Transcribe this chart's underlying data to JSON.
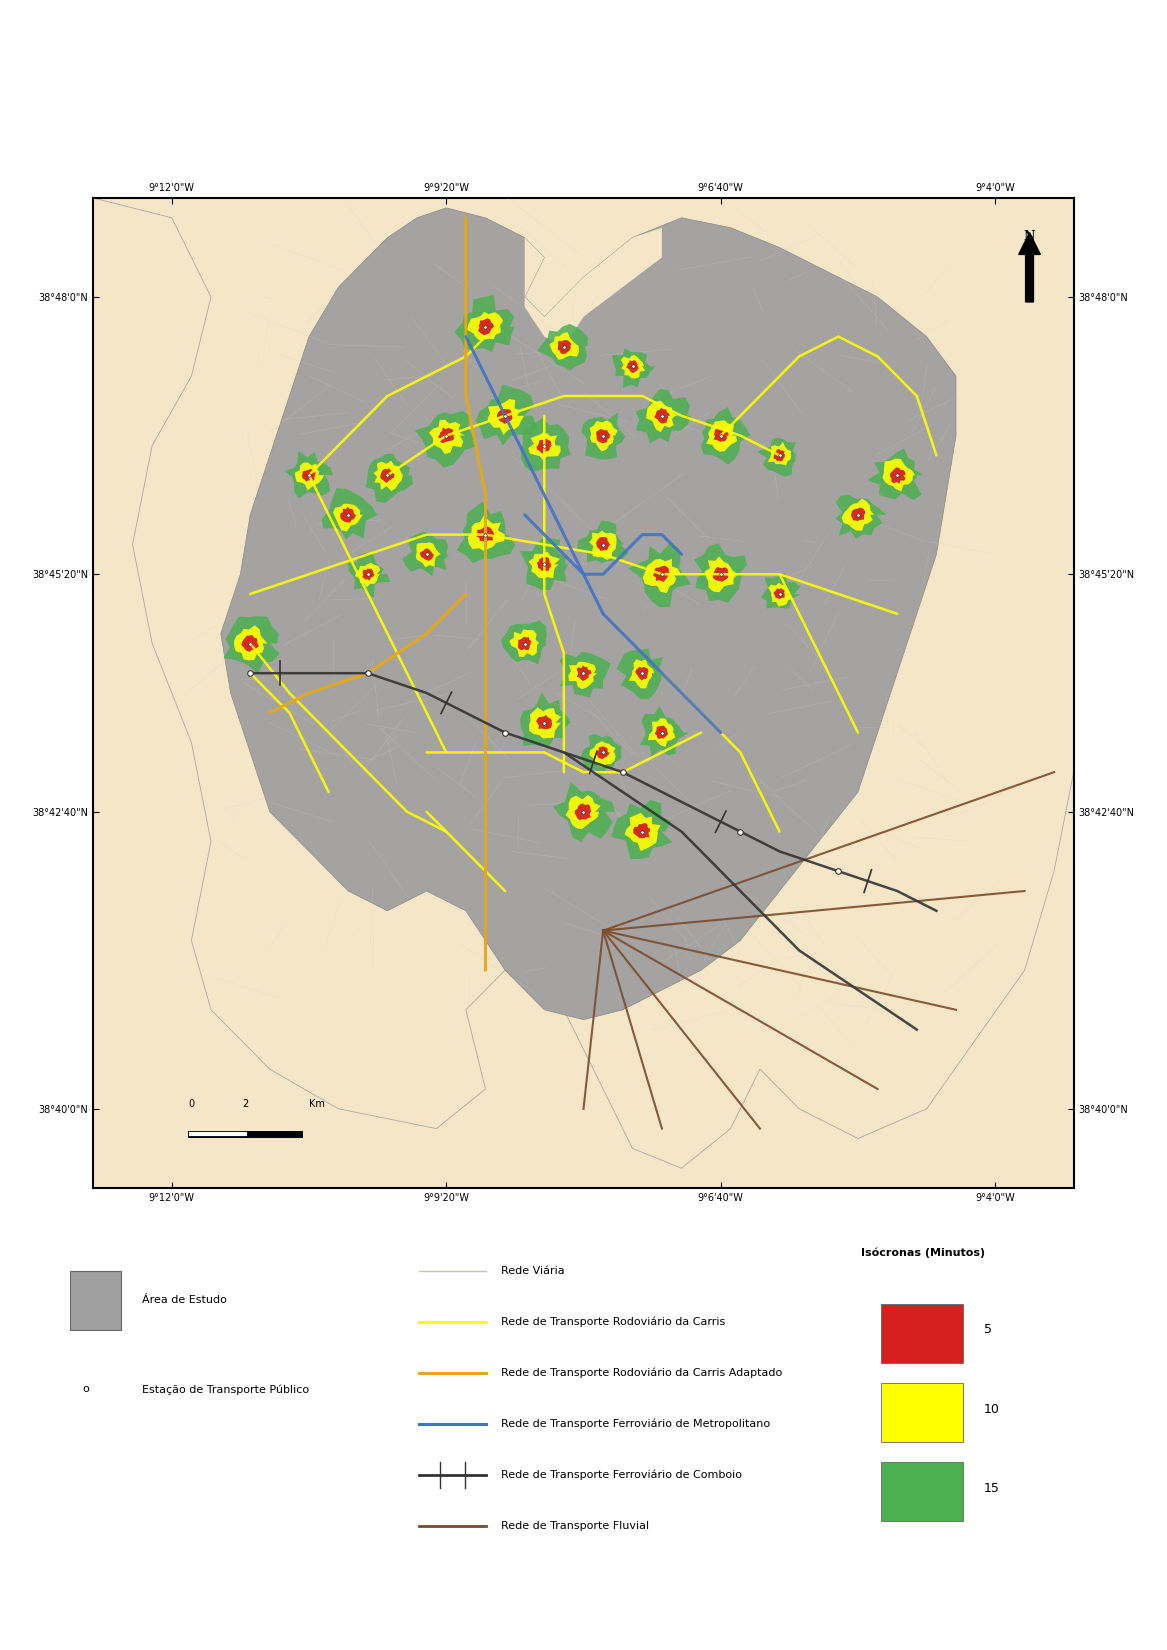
{
  "title": "",
  "map_bg_color": "#f5e6c8",
  "map_border_color": "#000000",
  "study_area_color": "#a0a0a0",
  "carris_color": "#ffff00",
  "carris_adapted_color": "#e6a817",
  "metro_color": "#4472c4",
  "comboio_color": "#333333",
  "fluvial_color": "#7B4B2A",
  "road_color": "#d8d0c0",
  "iso5_color": "#d62020",
  "iso10_color": "#ffff00",
  "iso15_color": "#4caf50",
  "axis_labels_top": [
    "9°12'0\"W",
    "9°9'20\"W",
    "9°6'40\"W",
    "9°4'0\"W"
  ],
  "axis_labels_bottom": [
    "9°12'0\"W",
    "9°9'20\"W",
    "9°6'40\"W",
    "9°4'0\"W"
  ],
  "axis_labels_left": [
    "38°48'0\"N",
    "38°45'20\"N",
    "38°42'40\"N",
    "38°40'0\"N"
  ],
  "axis_labels_right": [
    "38°48'0\"N",
    "38°45'20\"N",
    "38°42'40\"N",
    "38°40'0\"N"
  ],
  "isochronas": [
    {
      "label": "5",
      "color": "#d62020"
    },
    {
      "label": "10",
      "color": "#ffff00"
    },
    {
      "label": "15",
      "color": "#4caf50"
    }
  ],
  "figure_width": 11.67,
  "figure_height": 16.5,
  "figure_dpi": 100
}
